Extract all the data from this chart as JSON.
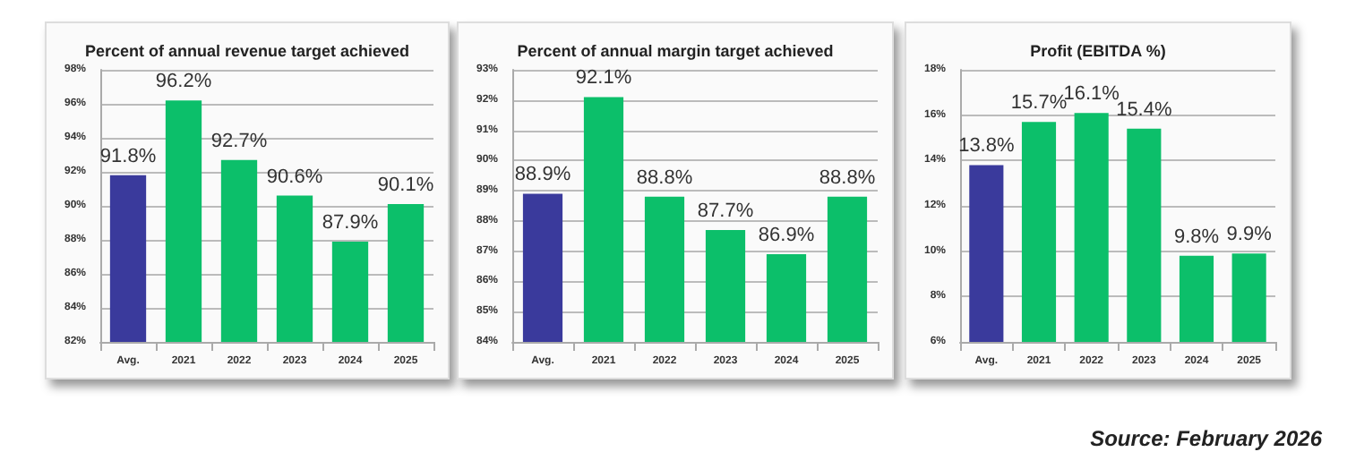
{
  "chart_data": [
    {
      "type": "bar",
      "title": "Percent of annual revenue target achieved",
      "categories": [
        "Avg.",
        "2021",
        "2022",
        "2023",
        "2024",
        "2025"
      ],
      "values": [
        91.8,
        96.2,
        92.7,
        90.6,
        87.9,
        90.1
      ],
      "colors": [
        "#3a3a9c",
        "#0cbf6a",
        "#0cbf6a",
        "#0cbf6a",
        "#0cbf6a",
        "#0cbf6a"
      ],
      "value_labels": [
        "91.8%",
        "96.2%",
        "92.7%",
        "90.6%",
        "87.9%",
        "90.1%"
      ],
      "ylim": [
        82,
        98
      ],
      "yticks": [
        {
          "value": 82,
          "label": "82%"
        },
        {
          "value": 84,
          "label": "84%"
        },
        {
          "value": 86,
          "label": "86%"
        },
        {
          "value": 88,
          "label": "88%"
        },
        {
          "value": 90,
          "label": "90%"
        },
        {
          "value": 92,
          "label": "92%"
        },
        {
          "value": 94,
          "label": "94%"
        },
        {
          "value": 96,
          "label": "96%"
        },
        {
          "value": 98,
          "label": "98%"
        }
      ],
      "grid": "y"
    },
    {
      "type": "bar",
      "title": "Percent of annual margin target achieved",
      "categories": [
        "Avg.",
        "2021",
        "2022",
        "2023",
        "2024",
        "2025"
      ],
      "values": [
        88.9,
        92.1,
        88.8,
        87.7,
        86.9,
        88.8
      ],
      "colors": [
        "#3a3a9c",
        "#0cbf6a",
        "#0cbf6a",
        "#0cbf6a",
        "#0cbf6a",
        "#0cbf6a"
      ],
      "value_labels": [
        "88.9%",
        "92.1%",
        "88.8%",
        "87.7%",
        "86.9%",
        "88.8%"
      ],
      "ylim": [
        84,
        93
      ],
      "yticks": [
        {
          "value": 84,
          "label": "84%"
        },
        {
          "value": 85,
          "label": "85%"
        },
        {
          "value": 86,
          "label": "86%"
        },
        {
          "value": 87,
          "label": "87%"
        },
        {
          "value": 88,
          "label": "88%"
        },
        {
          "value": 89,
          "label": "89%"
        },
        {
          "value": 90,
          "label": "90%"
        },
        {
          "value": 91,
          "label": "91%"
        },
        {
          "value": 92,
          "label": "92%"
        },
        {
          "value": 93,
          "label": "93%"
        }
      ],
      "grid": "y"
    },
    {
      "type": "bar",
      "title": "Profit (EBITDA %)",
      "categories": [
        "Avg.",
        "2021",
        "2022",
        "2023",
        "2024",
        "2025"
      ],
      "values": [
        13.8,
        15.7,
        16.1,
        15.4,
        9.8,
        9.9
      ],
      "colors": [
        "#3a3a9c",
        "#0cbf6a",
        "#0cbf6a",
        "#0cbf6a",
        "#0cbf6a",
        "#0cbf6a"
      ],
      "value_labels": [
        "13.8%",
        "15.7%",
        "16.1%",
        "15.4%",
        "9.8%",
        "9.9%"
      ],
      "ylim": [
        6,
        18
      ],
      "yticks": [
        {
          "value": 6,
          "label": "6%"
        },
        {
          "value": 8,
          "label": "8%"
        },
        {
          "value": 10,
          "label": "10%"
        },
        {
          "value": 12,
          "label": "12%"
        },
        {
          "value": 14,
          "label": "14%"
        },
        {
          "value": 16,
          "label": "16%"
        },
        {
          "value": 18,
          "label": "18%"
        }
      ],
      "grid": "y",
      "annotations": [
        "Source: February 2026"
      ]
    }
  ]
}
